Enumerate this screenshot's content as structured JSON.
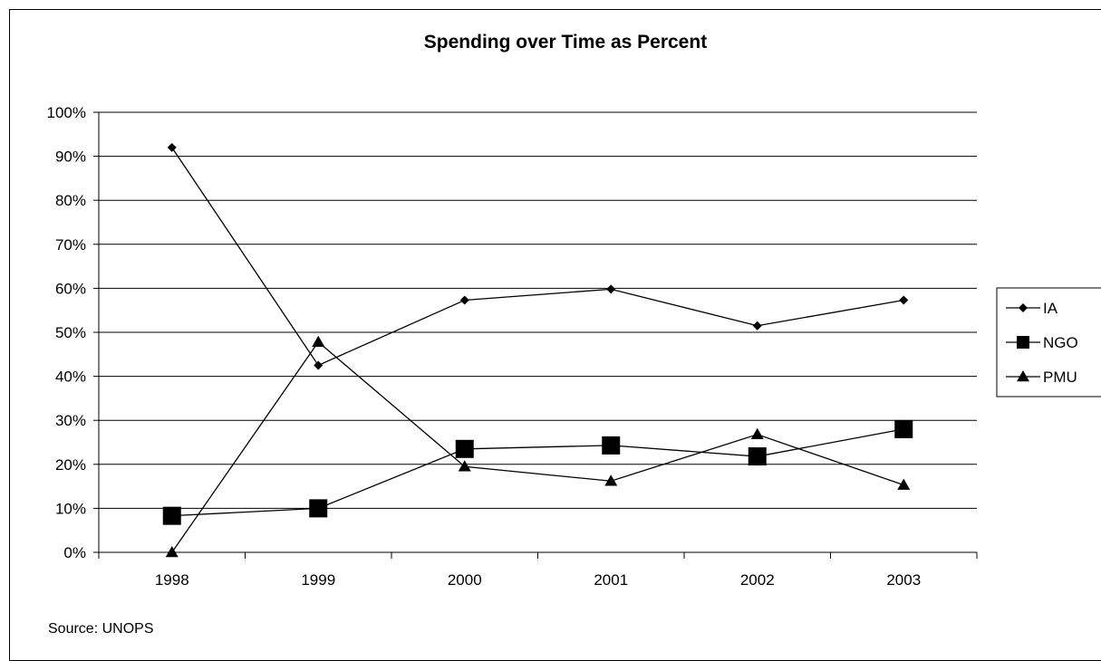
{
  "chart_data": {
    "type": "line",
    "title": "Spending over Time as Percent",
    "xlabel": "",
    "ylabel": "",
    "categories": [
      "1998",
      "1999",
      "2000",
      "2001",
      "2002",
      "2003"
    ],
    "ylim": [
      0,
      1
    ],
    "y_ticks": [
      "0%",
      "10%",
      "20%",
      "30%",
      "40%",
      "50%",
      "60%",
      "70%",
      "80%",
      "90%",
      "100%"
    ],
    "grid": "horizontal",
    "legend_position": "right",
    "series": [
      {
        "name": "IA",
        "marker": "diamond",
        "values": [
          0.92,
          0.425,
          0.573,
          0.598,
          0.515,
          0.573
        ]
      },
      {
        "name": "NGO",
        "marker": "square",
        "values": [
          0.083,
          0.1,
          0.235,
          0.243,
          0.218,
          0.28
        ]
      },
      {
        "name": "PMU",
        "marker": "triangle",
        "values": [
          0.0,
          0.478,
          0.195,
          0.162,
          0.268,
          0.153
        ]
      }
    ],
    "source_note": "Source: UNOPS"
  }
}
